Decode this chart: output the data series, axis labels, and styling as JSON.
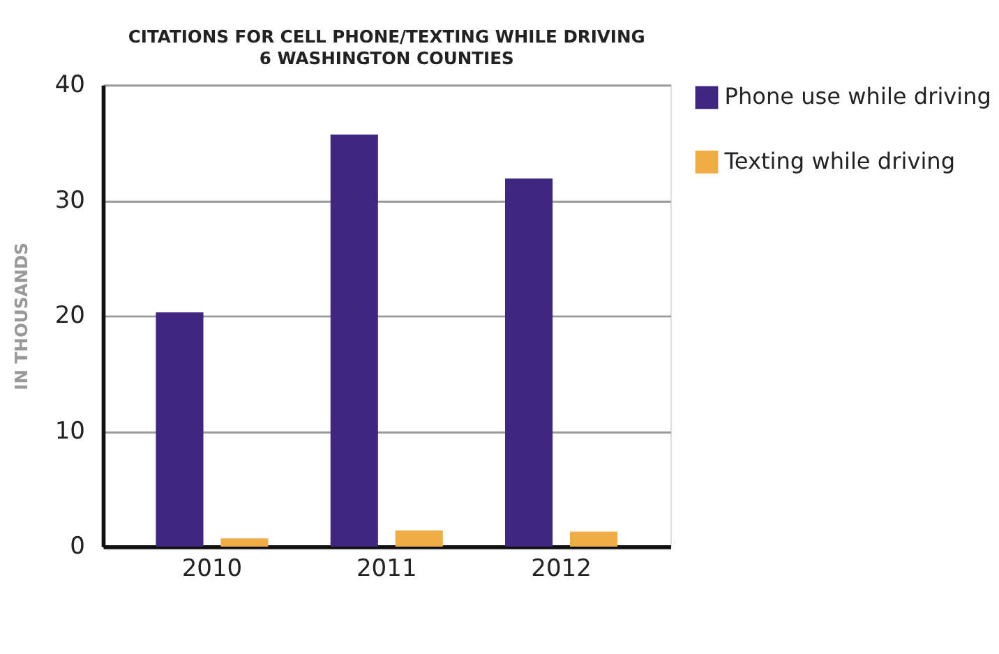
{
  "chart_data": {
    "type": "bar",
    "title": "CITATIONS FOR CELL PHONE/TEXTING WHILE DRIVING",
    "subtitle": "6 WASHINGTON COUNTIES",
    "ylabel": "IN THOUSANDS",
    "categories": [
      "2010",
      "2011",
      "2012"
    ],
    "series": [
      {
        "name": "Phone use while driving",
        "color": "#3f267e",
        "values": [
          20.3,
          35.7,
          31.9
        ]
      },
      {
        "name": "Texting while driving",
        "color": "#f0ad45",
        "values": [
          0.7,
          1.4,
          1.3
        ]
      }
    ],
    "ylim": [
      0,
      40
    ],
    "yticks": [
      0,
      10,
      20,
      30,
      40
    ],
    "grid": "y",
    "legend": "right"
  }
}
